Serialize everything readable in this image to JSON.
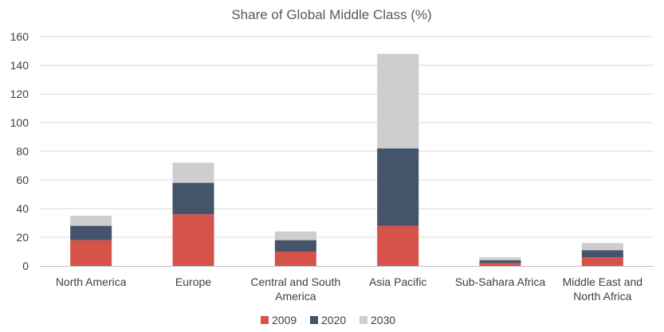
{
  "chart_data": {
    "type": "bar",
    "stacked": true,
    "title": "Share of Global Middle Class (%)",
    "categories": [
      [
        "North America"
      ],
      [
        "Europe"
      ],
      [
        "Central and South",
        "America"
      ],
      [
        "Asia Pacific"
      ],
      [
        "Sub-Sahara Africa"
      ],
      [
        "Middle East and",
        "North Africa"
      ]
    ],
    "series": [
      {
        "name": "2009",
        "color": "#d6534a",
        "values": [
          18,
          36,
          10,
          28,
          2,
          6
        ]
      },
      {
        "name": "2020",
        "color": "#44546a",
        "values": [
          10,
          22,
          8,
          54,
          2,
          5
        ]
      },
      {
        "name": "2030",
        "color": "#cfcdcd",
        "values": [
          7,
          14,
          6,
          66,
          2,
          5
        ]
      }
    ],
    "ylim": [
      0,
      160
    ],
    "yticks": [
      0,
      20,
      40,
      60,
      80,
      100,
      120,
      140,
      160
    ],
    "grid": true,
    "legend_position": "bottom"
  }
}
